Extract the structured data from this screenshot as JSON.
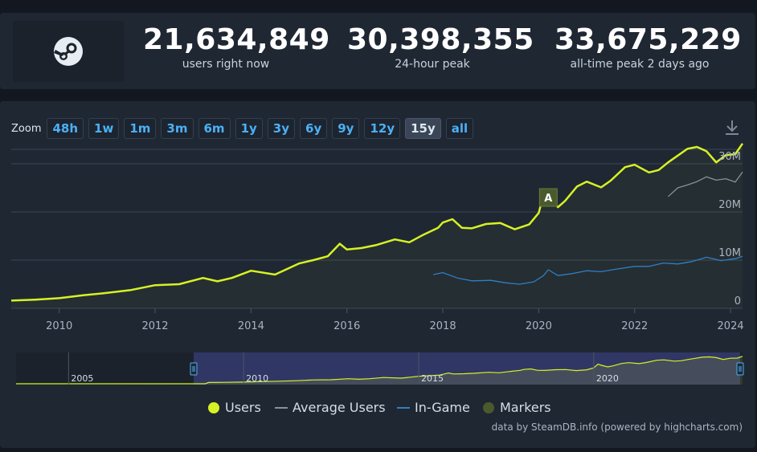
{
  "stats": {
    "current": {
      "value": "21,634,849",
      "label": "users right now"
    },
    "peak24": {
      "value": "30,398,355",
      "label": "24-hour peak"
    },
    "alltime": {
      "value": "33,675,229",
      "label": "all-time peak 2 days ago"
    }
  },
  "zoom": {
    "label": "Zoom",
    "buttons": [
      "48h",
      "1w",
      "1m",
      "3m",
      "6m",
      "1y",
      "3y",
      "6y",
      "9y",
      "12y",
      "15y",
      "all"
    ],
    "active": "15y"
  },
  "legend": {
    "users": "Users",
    "average": "Average Users",
    "ingame": "In-Game",
    "markers": "Markers"
  },
  "credit": "data by SteamDB.info (powered by highcharts.com)",
  "colors": {
    "users": "#d6f224",
    "average": "#8a9196",
    "ingame": "#2f7fc4",
    "markers": "#4a5a2c",
    "accent": "#4cb0f5"
  },
  "chart_data": {
    "type": "line",
    "x_axis": {
      "ticks": [
        "2010",
        "2012",
        "2014",
        "2016",
        "2018",
        "2020",
        "2022",
        "2024"
      ],
      "range": [
        2009.0,
        2024.25
      ]
    },
    "y_axis": {
      "ticks": [
        "0",
        "10M",
        "20M",
        "30M"
      ],
      "range": [
        0,
        33000000
      ]
    },
    "grid": true,
    "legend_position": "bottom",
    "marker": {
      "label": "A",
      "x": 2020.2
    },
    "navigator": {
      "labels": [
        "2005",
        "2010",
        "2015",
        "2020"
      ]
    },
    "series": [
      {
        "name": "Users",
        "x": [
          2009.0,
          2009.5,
          2010.0,
          2010.5,
          2011.0,
          2011.5,
          2012.0,
          2012.5,
          2013.0,
          2013.3,
          2013.6,
          2014.0,
          2014.5,
          2015.0,
          2015.3,
          2015.6,
          2015.85,
          2016.0,
          2016.3,
          2016.6,
          2017.0,
          2017.3,
          2017.6,
          2017.9,
          2018.0,
          2018.2,
          2018.4,
          2018.6,
          2018.9,
          2019.2,
          2019.5,
          2019.8,
          2020.0,
          2020.12,
          2020.22,
          2020.4,
          2020.55,
          2020.8,
          2021.0,
          2021.3,
          2021.5,
          2021.8,
          2022.0,
          2022.3,
          2022.5,
          2022.7,
          2022.9,
          2023.1,
          2023.3,
          2023.5,
          2023.7,
          2023.9,
          2024.1,
          2024.25
        ],
        "values": [
          1600000,
          1800000,
          2100000,
          2700000,
          3200000,
          3800000,
          4800000,
          5000000,
          6300000,
          5600000,
          6300000,
          7800000,
          7000000,
          9300000,
          10000000,
          10800000,
          13400000,
          12200000,
          12500000,
          13100000,
          14300000,
          13700000,
          15300000,
          16700000,
          17800000,
          18500000,
          16700000,
          16600000,
          17500000,
          17700000,
          16400000,
          17400000,
          19800000,
          24500000,
          23000000,
          21000000,
          22300000,
          25300000,
          26300000,
          25100000,
          26500000,
          29300000,
          29800000,
          28200000,
          28700000,
          30300000,
          31700000,
          33100000,
          33500000,
          32600000,
          30300000,
          31800000,
          32000000,
          34200000
        ]
      },
      {
        "name": "Average Users",
        "x": [
          2022.7,
          2022.9,
          2023.1,
          2023.3,
          2023.5,
          2023.7,
          2023.9,
          2024.1,
          2024.25
        ],
        "values": [
          23200000,
          25000000,
          25600000,
          26300000,
          27300000,
          26600000,
          26900000,
          26200000,
          28300000
        ]
      },
      {
        "name": "In-Game",
        "x": [
          2017.8,
          2018.0,
          2018.3,
          2018.6,
          2019.0,
          2019.3,
          2019.6,
          2019.9,
          2020.1,
          2020.2,
          2020.4,
          2020.7,
          2021.0,
          2021.3,
          2021.6,
          2022.0,
          2022.3,
          2022.6,
          2022.9,
          2023.2,
          2023.5,
          2023.8,
          2024.1,
          2024.25
        ],
        "values": [
          7000000,
          7400000,
          6300000,
          5700000,
          5800000,
          5300000,
          5000000,
          5500000,
          6800000,
          8000000,
          6800000,
          7200000,
          7800000,
          7600000,
          8100000,
          8700000,
          8700000,
          9400000,
          9200000,
          9700000,
          10600000,
          9900000,
          10300000,
          10800000
        ]
      }
    ]
  }
}
